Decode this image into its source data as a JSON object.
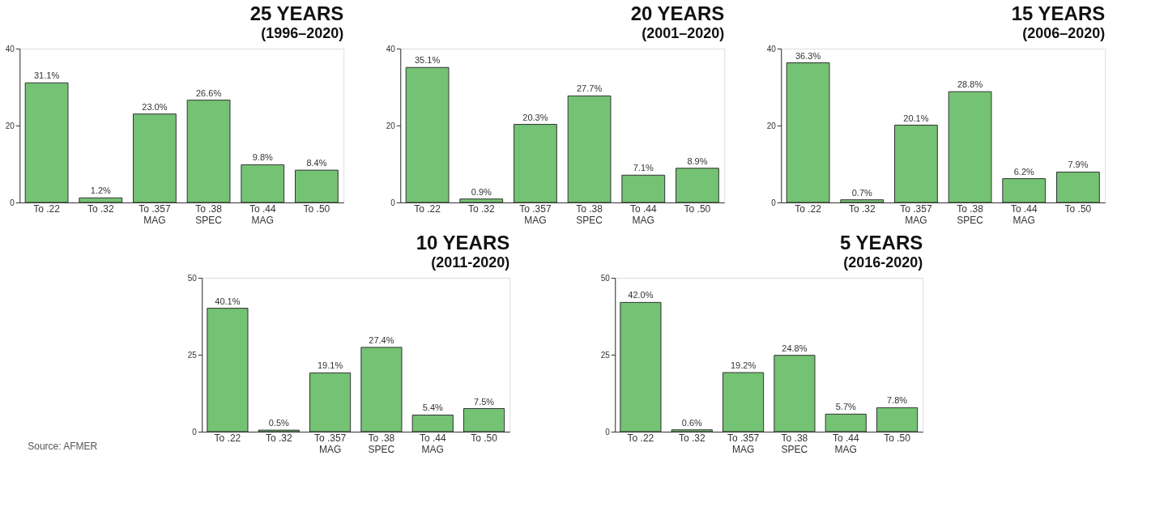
{
  "chart_data": [
    {
      "type": "bar",
      "title": "25 YEARS",
      "subtitle": "(1996–2020)",
      "categories": [
        "To .22",
        "To .32",
        "To .357\nMAG",
        "To .38\nSPEC",
        "To .44\nMAG",
        "To .50"
      ],
      "series": [
        {
          "color": "#74c274",
          "values": [
            31.1,
            1.2,
            23.0,
            26.6,
            9.8,
            8.4
          ],
          "value_labels": [
            "31.1%",
            "1.2%",
            "23.0%",
            "26.6%",
            "9.8%",
            "8.4%"
          ]
        }
      ],
      "ylim": [
        0,
        40
      ],
      "yticks": [
        0,
        20,
        40
      ],
      "grid": false
    },
    {
      "type": "bar",
      "title": "20 YEARS",
      "subtitle": "(2001–2020)",
      "categories": [
        "To .22",
        "To .32",
        "To .357\nMAG",
        "To .38\nSPEC",
        "To .44\nMAG",
        "To .50"
      ],
      "series": [
        {
          "color": "#74c274",
          "values": [
            35.1,
            0.9,
            20.3,
            27.7,
            7.1,
            8.9
          ],
          "value_labels": [
            "35.1%",
            "0.9%",
            "20.3%",
            "27.7%",
            "7.1%",
            "8.9%"
          ]
        }
      ],
      "ylim": [
        0,
        40
      ],
      "yticks": [
        0,
        20,
        40
      ],
      "grid": false
    },
    {
      "type": "bar",
      "title": "15 YEARS",
      "subtitle": "(2006–2020)",
      "categories": [
        "To .22",
        "To .32",
        "To .357\nMAG",
        "To .38\nSPEC",
        "To .44\nMAG",
        "To .50"
      ],
      "series": [
        {
          "color": "#74c274",
          "values": [
            36.3,
            0.7,
            20.1,
            28.8,
            6.2,
            7.9
          ],
          "value_labels": [
            "36.3%",
            "0.7%",
            "20.1%",
            "28.8%",
            "6.2%",
            "7.9%"
          ]
        }
      ],
      "ylim": [
        0,
        40
      ],
      "yticks": [
        0,
        20,
        40
      ],
      "grid": false
    },
    {
      "type": "bar",
      "title": "10 YEARS",
      "subtitle": "(2011-2020)",
      "categories": [
        "To .22",
        "To .32",
        "To .357\nMAG",
        "To .38\nSPEC",
        "To .44\nMAG",
        "To .50"
      ],
      "series": [
        {
          "color": "#74c274",
          "values": [
            40.1,
            0.5,
            19.1,
            27.4,
            5.4,
            7.5
          ],
          "value_labels": [
            "40.1%",
            "0.5%",
            "19.1%",
            "27.4%",
            "5.4%",
            "7.5%"
          ]
        }
      ],
      "ylim": [
        0,
        50
      ],
      "yticks": [
        0,
        25,
        50
      ],
      "grid": false,
      "annotations": [
        "Source: AFMER"
      ]
    },
    {
      "type": "bar",
      "title": "5 YEARS",
      "subtitle": "(2016-2020)",
      "categories": [
        "To .22",
        "To .32",
        "To .357\nMAG",
        "To .38\nSPEC",
        "To .44\nMAG",
        "To .50"
      ],
      "series": [
        {
          "color": "#74c274",
          "values": [
            42.0,
            0.6,
            19.2,
            24.8,
            5.7,
            7.8
          ],
          "value_labels": [
            "42.0%",
            "0.6%",
            "19.2%",
            "24.8%",
            "5.7%",
            "7.8%"
          ]
        }
      ],
      "ylim": [
        0,
        50
      ],
      "yticks": [
        0,
        25,
        50
      ],
      "grid": false
    }
  ]
}
